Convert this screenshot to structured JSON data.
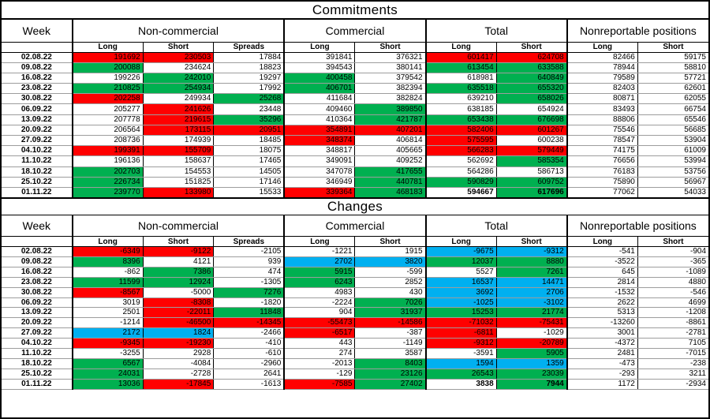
{
  "colors": {
    "r": "#FF0000",
    "g": "#00B050",
    "b": "#00B0F0"
  },
  "headers": {
    "week": "Week",
    "groups": [
      {
        "label": "Non-commercial"
      },
      {
        "label": "Commercial"
      },
      {
        "label": "Total"
      },
      {
        "label": "Nonreportable positions"
      }
    ],
    "sub": [
      "Long",
      "Short",
      "Spreads",
      "Long",
      "Short",
      "Long",
      "Short",
      "Long",
      "Short"
    ]
  },
  "commitments": {
    "title": "Commitments",
    "rows": [
      {
        "week": "02.08.22",
        "cells": [
          [
            "191692",
            "r"
          ],
          [
            "230503",
            "r"
          ],
          [
            "17884",
            ""
          ],
          [
            "391841",
            ""
          ],
          [
            "376321",
            ""
          ],
          [
            "601417",
            "r"
          ],
          [
            "624708",
            "r"
          ],
          [
            "82466",
            ""
          ],
          [
            "59175",
            ""
          ]
        ]
      },
      {
        "week": "09.08.22",
        "cells": [
          [
            "200088",
            "g"
          ],
          [
            "234624",
            ""
          ],
          [
            "18823",
            ""
          ],
          [
            "394543",
            ""
          ],
          [
            "380141",
            ""
          ],
          [
            "613454",
            "g"
          ],
          [
            "633588",
            "g"
          ],
          [
            "78944",
            ""
          ],
          [
            "58810",
            ""
          ]
        ]
      },
      {
        "week": "16.08.22",
        "cells": [
          [
            "199226",
            ""
          ],
          [
            "242010",
            "g"
          ],
          [
            "19297",
            ""
          ],
          [
            "400458",
            "g"
          ],
          [
            "379542",
            ""
          ],
          [
            "618981",
            ""
          ],
          [
            "640849",
            "g"
          ],
          [
            "79589",
            ""
          ],
          [
            "57721",
            ""
          ]
        ]
      },
      {
        "week": "23.08.22",
        "cells": [
          [
            "210825",
            "g"
          ],
          [
            "254934",
            "g"
          ],
          [
            "17992",
            ""
          ],
          [
            "406701",
            "g"
          ],
          [
            "382394",
            ""
          ],
          [
            "635518",
            "g"
          ],
          [
            "655320",
            "g"
          ],
          [
            "82403",
            ""
          ],
          [
            "62601",
            ""
          ]
        ]
      },
      {
        "week": "30.08.22",
        "cells": [
          [
            "202258",
            "r"
          ],
          [
            "249934",
            ""
          ],
          [
            "25268",
            "g"
          ],
          [
            "411684",
            ""
          ],
          [
            "382824",
            ""
          ],
          [
            "639210",
            ""
          ],
          [
            "658026",
            "g"
          ],
          [
            "80871",
            ""
          ],
          [
            "62055",
            ""
          ]
        ]
      },
      {
        "week": "06.09.22",
        "cells": [
          [
            "205277",
            ""
          ],
          [
            "241626",
            "r"
          ],
          [
            "23448",
            ""
          ],
          [
            "409460",
            ""
          ],
          [
            "389850",
            "g"
          ],
          [
            "638185",
            ""
          ],
          [
            "654924",
            ""
          ],
          [
            "83493",
            ""
          ],
          [
            "66754",
            ""
          ]
        ]
      },
      {
        "week": "13.09.22",
        "cells": [
          [
            "207778",
            ""
          ],
          [
            "219615",
            "r"
          ],
          [
            "35296",
            "g"
          ],
          [
            "410364",
            ""
          ],
          [
            "421787",
            "g"
          ],
          [
            "653438",
            "g"
          ],
          [
            "676698",
            "g"
          ],
          [
            "88806",
            ""
          ],
          [
            "65546",
            ""
          ]
        ]
      },
      {
        "week": "20.09.22",
        "cells": [
          [
            "206564",
            ""
          ],
          [
            "173115",
            "r"
          ],
          [
            "20951",
            "r"
          ],
          [
            "354891",
            "r"
          ],
          [
            "407201",
            "r"
          ],
          [
            "582406",
            "r"
          ],
          [
            "601267",
            "r"
          ],
          [
            "75546",
            ""
          ],
          [
            "56685",
            ""
          ]
        ]
      },
      {
        "week": "27.09.22",
        "cells": [
          [
            "208736",
            ""
          ],
          [
            "174939",
            ""
          ],
          [
            "18485",
            ""
          ],
          [
            "348374",
            "r"
          ],
          [
            "406814",
            ""
          ],
          [
            "575595",
            "r"
          ],
          [
            "600238",
            ""
          ],
          [
            "78547",
            ""
          ],
          [
            "53904",
            ""
          ]
        ]
      },
      {
        "week": "04.10.22",
        "cells": [
          [
            "199391",
            "r"
          ],
          [
            "155709",
            "r"
          ],
          [
            "18075",
            ""
          ],
          [
            "348817",
            ""
          ],
          [
            "405665",
            ""
          ],
          [
            "566283",
            "r"
          ],
          [
            "579449",
            "r"
          ],
          [
            "74175",
            ""
          ],
          [
            "61009",
            ""
          ]
        ]
      },
      {
        "week": "11.10.22",
        "cells": [
          [
            "196136",
            ""
          ],
          [
            "158637",
            ""
          ],
          [
            "17465",
            ""
          ],
          [
            "349091",
            ""
          ],
          [
            "409252",
            ""
          ],
          [
            "562692",
            ""
          ],
          [
            "585354",
            "g"
          ],
          [
            "76656",
            ""
          ],
          [
            "53994",
            ""
          ]
        ]
      },
      {
        "week": "18.10.22",
        "cells": [
          [
            "202703",
            "g"
          ],
          [
            "154553",
            ""
          ],
          [
            "14505",
            ""
          ],
          [
            "347078",
            ""
          ],
          [
            "417655",
            "g"
          ],
          [
            "564286",
            ""
          ],
          [
            "586713",
            ""
          ],
          [
            "76183",
            ""
          ],
          [
            "53756",
            ""
          ]
        ]
      },
      {
        "week": "25.10.22",
        "cells": [
          [
            "226734",
            "g"
          ],
          [
            "151825",
            ""
          ],
          [
            "17146",
            ""
          ],
          [
            "346949",
            ""
          ],
          [
            "440781",
            "g"
          ],
          [
            "590829",
            "g"
          ],
          [
            "609752",
            "g"
          ],
          [
            "75890",
            ""
          ],
          [
            "56967",
            ""
          ]
        ]
      },
      {
        "week": "01.11.22",
        "cells": [
          [
            "239770",
            "g"
          ],
          [
            "133980",
            "r"
          ],
          [
            "15533",
            ""
          ],
          [
            "339364",
            "r"
          ],
          [
            "468183",
            "g"
          ],
          [
            "594667",
            "",
            "bold"
          ],
          [
            "617696",
            "g",
            "bold"
          ],
          [
            "77062",
            ""
          ],
          [
            "54033",
            ""
          ]
        ]
      }
    ]
  },
  "changes": {
    "title": "Changes",
    "rows": [
      {
        "week": "02.08.22",
        "cells": [
          [
            "-6349",
            "r"
          ],
          [
            "-9122",
            "r"
          ],
          [
            "-2105",
            ""
          ],
          [
            "-1221",
            ""
          ],
          [
            "1915",
            ""
          ],
          [
            "-9675",
            "b"
          ],
          [
            "-9312",
            "b"
          ],
          [
            "-541",
            ""
          ],
          [
            "-904",
            ""
          ]
        ]
      },
      {
        "week": "09.08.22",
        "cells": [
          [
            "8396",
            "g"
          ],
          [
            "4121",
            ""
          ],
          [
            "939",
            ""
          ],
          [
            "2702",
            "b"
          ],
          [
            "3820",
            "b"
          ],
          [
            "12037",
            "g"
          ],
          [
            "8880",
            "g"
          ],
          [
            "-3522",
            ""
          ],
          [
            "-365",
            ""
          ]
        ]
      },
      {
        "week": "16.08.22",
        "cells": [
          [
            "-862",
            ""
          ],
          [
            "7386",
            "g"
          ],
          [
            "474",
            ""
          ],
          [
            "5915",
            "g"
          ],
          [
            "-599",
            ""
          ],
          [
            "5527",
            ""
          ],
          [
            "7261",
            "g"
          ],
          [
            "645",
            ""
          ],
          [
            "-1089",
            ""
          ]
        ]
      },
      {
        "week": "23.08.22",
        "cells": [
          [
            "11599",
            "g"
          ],
          [
            "12924",
            "g"
          ],
          [
            "-1305",
            ""
          ],
          [
            "6243",
            "g"
          ],
          [
            "2852",
            ""
          ],
          [
            "16537",
            "b"
          ],
          [
            "14471",
            "b"
          ],
          [
            "2814",
            ""
          ],
          [
            "4880",
            ""
          ]
        ]
      },
      {
        "week": "30.08.22",
        "cells": [
          [
            "-8567",
            "r"
          ],
          [
            "-5000",
            ""
          ],
          [
            "7276",
            "g"
          ],
          [
            "4983",
            ""
          ],
          [
            "430",
            ""
          ],
          [
            "3692",
            "b"
          ],
          [
            "2706",
            "b"
          ],
          [
            "-1532",
            ""
          ],
          [
            "-546",
            ""
          ]
        ]
      },
      {
        "week": "06.09.22",
        "cells": [
          [
            "3019",
            ""
          ],
          [
            "-8308",
            "r"
          ],
          [
            "-1820",
            ""
          ],
          [
            "-2224",
            ""
          ],
          [
            "7026",
            "g"
          ],
          [
            "-1025",
            "b"
          ],
          [
            "-3102",
            "b"
          ],
          [
            "2622",
            ""
          ],
          [
            "4699",
            ""
          ]
        ]
      },
      {
        "week": "13.09.22",
        "cells": [
          [
            "2501",
            ""
          ],
          [
            "-22011",
            "r"
          ],
          [
            "11848",
            "g"
          ],
          [
            "904",
            ""
          ],
          [
            "31937",
            "g"
          ],
          [
            "15253",
            "g"
          ],
          [
            "21774",
            "g"
          ],
          [
            "5313",
            ""
          ],
          [
            "-1208",
            ""
          ]
        ]
      },
      {
        "week": "20.09.22",
        "cells": [
          [
            "-1214",
            ""
          ],
          [
            "-46500",
            "r"
          ],
          [
            "-14345",
            "r"
          ],
          [
            "-55473",
            "r"
          ],
          [
            "-14586",
            "r"
          ],
          [
            "-71032",
            "r"
          ],
          [
            "-75431",
            "r"
          ],
          [
            "-13260",
            ""
          ],
          [
            "-8861",
            ""
          ]
        ]
      },
      {
        "week": "27.09.22",
        "cells": [
          [
            "2172",
            "b"
          ],
          [
            "1824",
            "b"
          ],
          [
            "-2466",
            ""
          ],
          [
            "-6517",
            "r"
          ],
          [
            "-387",
            ""
          ],
          [
            "-6811",
            "r"
          ],
          [
            "-1029",
            ""
          ],
          [
            "3001",
            ""
          ],
          [
            "-2781",
            ""
          ]
        ]
      },
      {
        "week": "04.10.22",
        "cells": [
          [
            "-9345",
            "r"
          ],
          [
            "-19230",
            "r"
          ],
          [
            "-410",
            ""
          ],
          [
            "443",
            ""
          ],
          [
            "-1149",
            ""
          ],
          [
            "-9312",
            "r"
          ],
          [
            "-20789",
            "r"
          ],
          [
            "-4372",
            ""
          ],
          [
            "7105",
            ""
          ]
        ]
      },
      {
        "week": "11.10.22",
        "cells": [
          [
            "-3255",
            ""
          ],
          [
            "2928",
            ""
          ],
          [
            "-610",
            ""
          ],
          [
            "274",
            ""
          ],
          [
            "3587",
            ""
          ],
          [
            "-3591",
            ""
          ],
          [
            "5905",
            "g"
          ],
          [
            "2481",
            ""
          ],
          [
            "-7015",
            ""
          ]
        ]
      },
      {
        "week": "18.10.22",
        "cells": [
          [
            "6567",
            "g"
          ],
          [
            "-4084",
            ""
          ],
          [
            "-2960",
            ""
          ],
          [
            "-2013",
            ""
          ],
          [
            "8403",
            "g"
          ],
          [
            "1594",
            "b"
          ],
          [
            "1359",
            "b"
          ],
          [
            "-473",
            ""
          ],
          [
            "-238",
            ""
          ]
        ]
      },
      {
        "week": "25.10.22",
        "cells": [
          [
            "24031",
            "g"
          ],
          [
            "-2728",
            ""
          ],
          [
            "2641",
            ""
          ],
          [
            "-129",
            ""
          ],
          [
            "23126",
            "g"
          ],
          [
            "26543",
            "g"
          ],
          [
            "23039",
            "g"
          ],
          [
            "-293",
            ""
          ],
          [
            "3211",
            ""
          ]
        ]
      },
      {
        "week": "01.11.22",
        "cells": [
          [
            "13036",
            "g"
          ],
          [
            "-17845",
            "r"
          ],
          [
            "-1613",
            ""
          ],
          [
            "-7585",
            "r"
          ],
          [
            "27402",
            "g"
          ],
          [
            "3838",
            "",
            "bold"
          ],
          [
            "7944",
            "g",
            "bold"
          ],
          [
            "1172",
            ""
          ],
          [
            "-2934",
            ""
          ]
        ]
      }
    ]
  }
}
